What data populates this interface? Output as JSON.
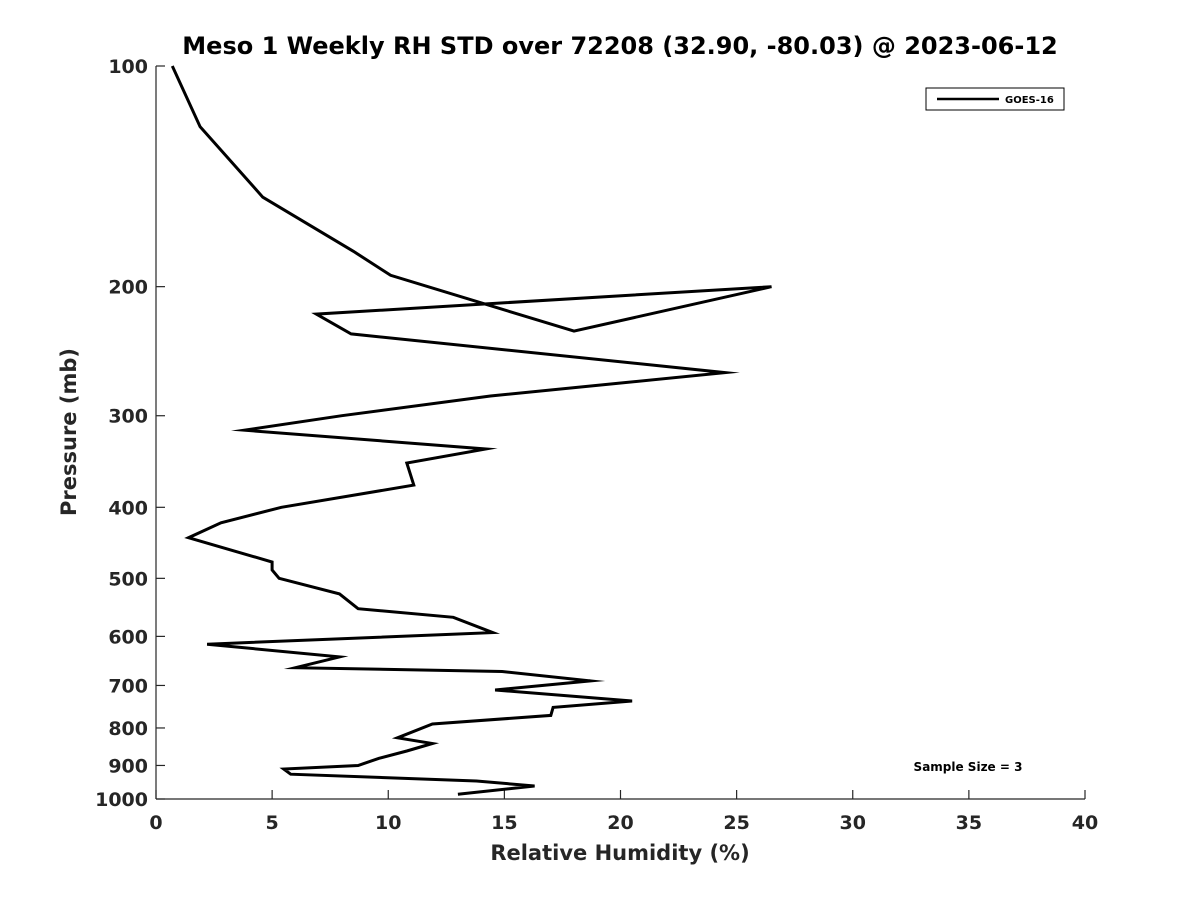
{
  "chart_data": {
    "type": "line",
    "title": "Meso 1 Weekly RH STD over 72208 (32.90, -80.03) @ 2023-06-12",
    "xlabel": "Relative Humidity (%)",
    "ylabel": "Pressure (mb)",
    "xlim": [
      0,
      40
    ],
    "ylim": [
      100,
      1000
    ],
    "y_scale": "log",
    "y_reversed": true,
    "grid": false,
    "x_ticks": [
      0,
      5,
      10,
      15,
      20,
      25,
      30,
      35,
      40
    ],
    "x_tick_labels": [
      "0",
      "5",
      "10",
      "15",
      "20",
      "25",
      "30",
      "35",
      "40"
    ],
    "y_ticks": [
      100,
      200,
      300,
      400,
      500,
      600,
      700,
      800,
      900,
      1000
    ],
    "y_tick_labels": [
      "100",
      "200",
      "300",
      "400",
      "500",
      "600",
      "700",
      "800",
      "900",
      "1000"
    ],
    "legend": {
      "placement": "top-right",
      "entries": [
        "GOES-16"
      ]
    },
    "annotation": "Sample Size = 3",
    "series": [
      {
        "name": "GOES-16",
        "color": "#000000",
        "x": [
          0.7,
          1.9,
          4.6,
          8.5,
          10.1,
          18.0,
          26.5,
          6.9,
          8.4,
          24.5,
          14.4,
          8.0,
          3.8,
          14.2,
          10.8,
          11.1,
          5.4,
          2.8,
          1.4,
          5.0,
          5.0,
          5.3,
          7.9,
          8.7,
          12.8,
          14.5,
          2.2,
          7.9,
          6.0,
          14.9,
          18.7,
          14.6,
          20.5,
          17.1,
          17.0,
          11.9,
          10.4,
          11.9,
          10.8,
          9.6,
          8.7,
          5.5,
          5.8,
          13.8,
          16.3,
          13.0
        ],
        "y": [
          100,
          121,
          151,
          179,
          193,
          230,
          200,
          218,
          232,
          262,
          282,
          300,
          314,
          333,
          348,
          373,
          400,
          420,
          440,
          475,
          487,
          500,
          525,
          550,
          565,
          593,
          615,
          640,
          662,
          670,
          690,
          710,
          735,
          750,
          769,
          790,
          825,
          840,
          860,
          880,
          900,
          910,
          925,
          945,
          960,
          985
        ]
      }
    ]
  }
}
